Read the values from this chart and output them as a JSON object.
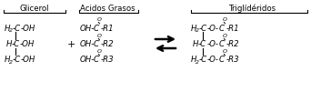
{
  "bg_color": "#ffffff",
  "text_color": "#000000",
  "title_glicerol": "Glicerol",
  "title_acidos": "Acidos Grasos",
  "title_trigliceridos": "Triglídéridos",
  "fig_width": 3.42,
  "fig_height": 1.13,
  "dpi": 100
}
